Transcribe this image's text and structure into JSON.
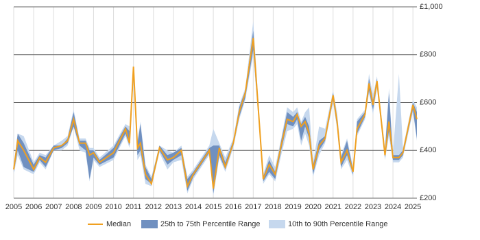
{
  "chart_data": {
    "type": "line",
    "x": [
      2005.0,
      2005.2,
      2005.5,
      2006.0,
      2006.3,
      2006.6,
      2007.0,
      2007.4,
      2007.7,
      2008.0,
      2008.3,
      2008.6,
      2008.8,
      2009.0,
      2009.3,
      2010.0,
      2010.6,
      2010.8,
      2011.0,
      2011.2,
      2011.35,
      2011.6,
      2011.9,
      2012.3,
      2012.7,
      2013.0,
      2013.4,
      2013.7,
      2014.0,
      2014.8,
      2015.0,
      2015.3,
      2015.6,
      2016.0,
      2016.3,
      2016.6,
      2017.0,
      2017.3,
      2017.5,
      2017.8,
      2018.1,
      2018.4,
      2018.7,
      2019.0,
      2019.2,
      2019.4,
      2019.6,
      2019.8,
      2020.0,
      2020.3,
      2020.6,
      2021.0,
      2021.2,
      2021.4,
      2021.7,
      2022.0,
      2022.2,
      2022.6,
      2022.8,
      2023.0,
      2023.2,
      2023.6,
      2023.8,
      2024.0,
      2024.3,
      2024.5,
      2025.0,
      2025.2
    ],
    "series": [
      {
        "name": "10th to 90th Percentile Range",
        "color": "#c6d8ee",
        "band": true,
        "low": [
          300,
          380,
          320,
          300,
          350,
          320,
          400,
          400,
          420,
          500,
          400,
          390,
          270,
          360,
          330,
          360,
          460,
          410,
          700,
          360,
          380,
          260,
          250,
          390,
          320,
          350,
          360,
          220,
          280,
          380,
          210,
          370,
          310,
          410,
          530,
          610,
          800,
          490,
          260,
          300,
          270,
          380,
          480,
          490,
          510,
          420,
          470,
          420,
          290,
          380,
          430,
          600,
          490,
          320,
          360,
          290,
          460,
          530,
          640,
          550,
          660,
          360,
          460,
          350,
          350,
          370,
          560,
          440
        ],
        "high": [
          340,
          470,
          460,
          350,
          390,
          380,
          420,
          440,
          460,
          570,
          450,
          450,
          410,
          410,
          370,
          420,
          510,
          500,
          760,
          440,
          520,
          340,
          290,
          420,
          400,
          390,
          420,
          290,
          320,
          420,
          490,
          430,
          370,
          450,
          590,
          660,
          940,
          550,
          300,
          380,
          330,
          450,
          580,
          560,
          580,
          520,
          560,
          580,
          350,
          500,
          490,
          650,
          560,
          380,
          450,
          330,
          530,
          570,
          720,
          630,
          710,
          410,
          660,
          390,
          720,
          410,
          610,
          580
        ]
      },
      {
        "name": "25th to 75th Percentile Range",
        "color": "#7090c0",
        "band": true,
        "low": [
          310,
          400,
          330,
          310,
          360,
          330,
          400,
          410,
          430,
          500,
          420,
          400,
          280,
          370,
          340,
          370,
          470,
          420,
          700,
          380,
          400,
          280,
          260,
          400,
          340,
          360,
          380,
          230,
          290,
          390,
          220,
          380,
          320,
          420,
          540,
          620,
          820,
          500,
          270,
          310,
          280,
          400,
          510,
          500,
          530,
          440,
          500,
          450,
          300,
          400,
          440,
          610,
          500,
          330,
          380,
          300,
          470,
          540,
          650,
          570,
          670,
          370,
          480,
          360,
          360,
          380,
          570,
          450
        ],
        "high": [
          330,
          470,
          430,
          340,
          380,
          370,
          420,
          420,
          450,
          560,
          440,
          440,
          400,
          400,
          360,
          410,
          500,
          480,
          750,
          430,
          510,
          330,
          280,
          420,
          380,
          390,
          410,
          280,
          310,
          410,
          420,
          420,
          350,
          440,
          580,
          650,
          900,
          540,
          290,
          360,
          310,
          440,
          560,
          540,
          560,
          510,
          540,
          500,
          340,
          440,
          460,
          640,
          530,
          370,
          440,
          320,
          520,
          560,
          700,
          610,
          700,
          400,
          640,
          380,
          380,
          400,
          600,
          560
        ]
      },
      {
        "name": "Median",
        "color": "#f0a020",
        "values": [
          320,
          440,
          400,
          320,
          370,
          350,
          410,
          420,
          440,
          530,
          430,
          430,
          380,
          390,
          350,
          390,
          490,
          430,
          750,
          410,
          430,
          300,
          260,
          410,
          360,
          370,
          400,
          250,
          300,
          400,
          240,
          410,
          330,
          430,
          560,
          640,
          870,
          520,
          280,
          340,
          300,
          420,
          530,
          520,
          550,
          500,
          520,
          470,
          320,
          420,
          450,
          630,
          520,
          350,
          400,
          310,
          490,
          550,
          680,
          590,
          690,
          380,
          520,
          370,
          370,
          390,
          590,
          530
        ]
      }
    ],
    "xlim": [
      2005,
      2025.2
    ],
    "ylim": [
      200,
      1000
    ],
    "xticks": [
      2005,
      2006,
      2007,
      2008,
      2009,
      2010,
      2011,
      2012,
      2013,
      2014,
      2015,
      2016,
      2017,
      2018,
      2019,
      2020,
      2021,
      2022,
      2023,
      2024,
      2025
    ],
    "yticks": [
      {
        "value": 200,
        "label": "£200"
      },
      {
        "value": 400,
        "label": "£400"
      },
      {
        "value": 600,
        "label": "£600"
      },
      {
        "value": 800,
        "label": "£800"
      },
      {
        "value": 1000,
        "label": "£1,000"
      }
    ],
    "grid": true,
    "legend": "bottom"
  }
}
